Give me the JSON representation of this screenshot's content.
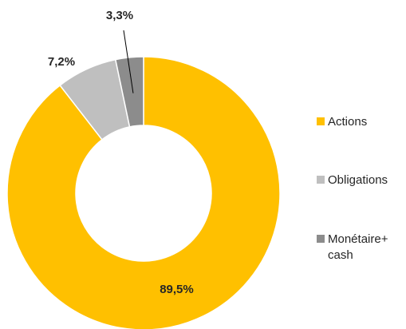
{
  "chart_data": {
    "type": "pie",
    "categories": [
      "Actions",
      "Obligations",
      "Monétaire+ cash"
    ],
    "values": [
      89.5,
      7.2,
      3.3
    ],
    "value_labels": [
      "89,5%",
      "7,2%",
      "3,3%"
    ],
    "colors": [
      "#FFC000",
      "#BFBFBF",
      "#8C8C8C"
    ],
    "legend": "right"
  }
}
